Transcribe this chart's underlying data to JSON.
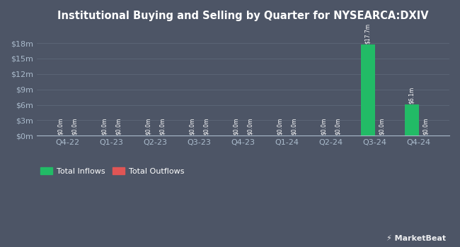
{
  "title": "Institutional Buying and Selling by Quarter for NYSEARCA:DXIV",
  "background_color": "#4d5566",
  "plot_bg_color": "#4d5566",
  "categories": [
    "Q4-22",
    "Q1-23",
    "Q2-23",
    "Q3-23",
    "Q4-23",
    "Q1-24",
    "Q2-24",
    "Q3-24",
    "Q4-24"
  ],
  "inflows": [
    0.0,
    0.0,
    0.0,
    0.0,
    0.0,
    0.0,
    0.0,
    17700000,
    6100000
  ],
  "outflows": [
    0.0,
    0.0,
    0.0,
    0.0,
    0.0,
    0.0,
    0.0,
    0.0,
    0.0
  ],
  "inflow_color": "#22bb66",
  "outflow_color": "#e05555",
  "bar_labels_inflow": [
    "$0.0m",
    "$0.0m",
    "$0.0m",
    "$0.0m",
    "$0.0m",
    "$0.0m",
    "$0.0m",
    "$17.7m",
    "$6.1m"
  ],
  "bar_labels_outflow": [
    "$0.0m",
    "$0.0m",
    "$0.0m",
    "$0.0m",
    "$0.0m",
    "$0.0m",
    "$0.0m",
    "$0.0m",
    "$0.0m"
  ],
  "yticks": [
    0,
    3000000,
    6000000,
    9000000,
    12000000,
    15000000,
    18000000
  ],
  "ytick_labels": [
    "$0m",
    "$3m",
    "$6m",
    "$9m",
    "$12m",
    "$15m",
    "$18m"
  ],
  "ylim": [
    0,
    20000000
  ],
  "title_color": "#ffffff",
  "axis_color": "#aabbcc",
  "grid_color": "#5d6878",
  "legend_inflow": "Total Inflows",
  "legend_outflow": "Total Outflows",
  "bar_width": 0.32,
  "watermark": "MarketBeat"
}
